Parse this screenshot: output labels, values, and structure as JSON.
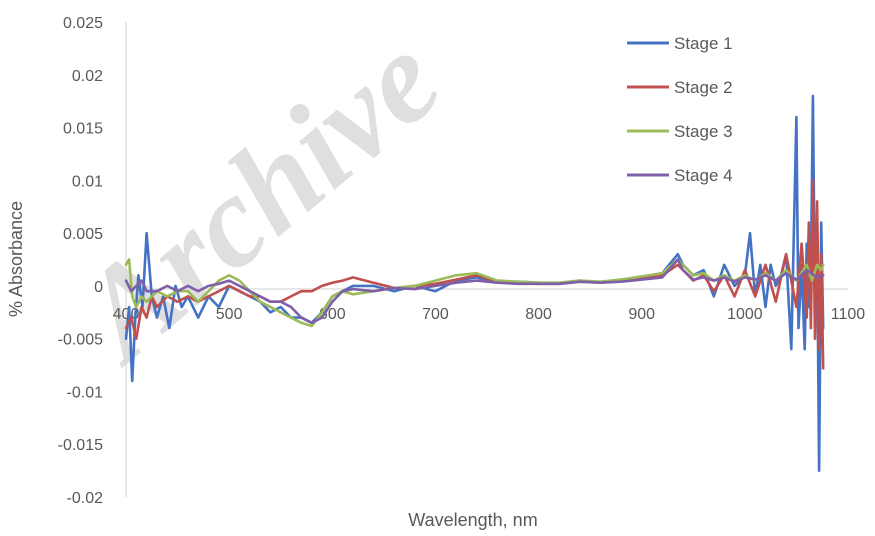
{
  "watermark": "Archive",
  "chart_data": {
    "type": "line",
    "title": "",
    "xlabel": "Wavelength, nm",
    "ylabel": "% Absorbance",
    "xlim": [
      400,
      1100
    ],
    "ylim": [
      -0.02,
      0.025
    ],
    "x_ticks": [
      400,
      500,
      600,
      700,
      800,
      900,
      1000,
      1100
    ],
    "x_tick_labels": [
      "400",
      "500",
      "600",
      "700",
      "800",
      "900",
      "1000",
      "1100"
    ],
    "y_ticks": [
      -0.02,
      -0.015,
      -0.01,
      -0.005,
      0,
      0.005,
      0.01,
      0.015,
      0.02,
      0.025
    ],
    "y_tick_labels": [
      "-0.02",
      "-0.015",
      "-0.01",
      "-0.005",
      "0",
      "0.005",
      "0.01",
      "0.015",
      "0.02",
      "0.025"
    ],
    "grid": false,
    "legend_position": "top-right",
    "series": [
      {
        "name": "Stage 1",
        "color": "#4472C4",
        "x": [
          400,
          403,
          406,
          409,
          412,
          416,
          420,
          425,
          430,
          436,
          442,
          448,
          454,
          460,
          470,
          480,
          490,
          500,
          510,
          520,
          530,
          540,
          550,
          560,
          570,
          580,
          590,
          600,
          610,
          620,
          640,
          660,
          680,
          700,
          720,
          740,
          760,
          780,
          800,
          820,
          840,
          860,
          880,
          900,
          920,
          935,
          940,
          950,
          960,
          970,
          980,
          990,
          1000,
          1005,
          1010,
          1015,
          1020,
          1025,
          1030,
          1035,
          1040,
          1045,
          1050,
          1052,
          1055,
          1058,
          1060,
          1062,
          1064,
          1066,
          1068,
          1070,
          1072,
          1074,
          1076
        ],
        "y": [
          -0.005,
          -0.002,
          -0.009,
          -0.003,
          0.001,
          -0.002,
          0.005,
          -0.001,
          -0.003,
          -0.001,
          -0.004,
          0.0,
          -0.002,
          -0.001,
          -0.003,
          -0.001,
          -0.002,
          0.0,
          -0.0005,
          -0.001,
          -0.0015,
          -0.0025,
          -0.002,
          -0.003,
          -0.003,
          -0.0035,
          -0.0025,
          -0.001,
          -0.0005,
          0.0,
          0.0,
          -0.0005,
          0.0,
          -0.0005,
          0.0005,
          0.0008,
          0.0003,
          0.0004,
          0.0003,
          0.0002,
          0.0005,
          0.0003,
          0.0006,
          0.0008,
          0.0012,
          0.003,
          0.002,
          0.001,
          0.0015,
          -0.001,
          0.002,
          0.0,
          0.001,
          0.005,
          -0.001,
          0.002,
          -0.002,
          0.002,
          0.0,
          0.001,
          0.003,
          -0.006,
          0.016,
          -0.004,
          0.002,
          -0.006,
          0.004,
          -0.002,
          0.001,
          0.018,
          -0.002,
          0.005,
          -0.0175,
          0.006,
          -0.004
        ]
      },
      {
        "name": "Stage 2",
        "color": "#C0504D",
        "x": [
          400,
          405,
          410,
          415,
          420,
          425,
          430,
          440,
          450,
          460,
          470,
          480,
          490,
          500,
          510,
          520,
          530,
          540,
          550,
          560,
          570,
          580,
          590,
          600,
          610,
          620,
          640,
          660,
          680,
          700,
          720,
          740,
          760,
          780,
          800,
          820,
          840,
          860,
          880,
          900,
          920,
          935,
          940,
          950,
          960,
          970,
          980,
          990,
          1000,
          1010,
          1020,
          1030,
          1040,
          1050,
          1055,
          1060,
          1062,
          1064,
          1066,
          1068,
          1070,
          1072,
          1074,
          1076
        ],
        "y": [
          -0.004,
          -0.003,
          -0.005,
          -0.002,
          -0.003,
          -0.001,
          -0.002,
          -0.001,
          -0.0015,
          -0.001,
          -0.0015,
          -0.001,
          -0.0005,
          0.0,
          -0.0005,
          -0.001,
          -0.001,
          -0.0015,
          -0.0015,
          -0.001,
          -0.0005,
          -0.0005,
          0.0,
          0.0003,
          0.0005,
          0.0008,
          0.0003,
          -0.0002,
          0.0,
          0.0002,
          0.0006,
          0.001,
          0.0004,
          0.0003,
          0.0002,
          0.0002,
          0.0004,
          0.0003,
          0.0005,
          0.0008,
          0.001,
          0.002,
          0.0015,
          0.0005,
          0.001,
          -0.0005,
          0.001,
          -0.001,
          0.0015,
          -0.001,
          0.002,
          -0.0015,
          0.003,
          -0.002,
          0.004,
          -0.003,
          0.006,
          -0.004,
          0.01,
          -0.005,
          0.008,
          -0.006,
          0.003,
          -0.0078
        ]
      },
      {
        "name": "Stage 3",
        "color": "#9BBB59",
        "x": [
          400,
          403,
          406,
          410,
          415,
          420,
          430,
          440,
          450,
          460,
          470,
          480,
          490,
          500,
          510,
          520,
          530,
          540,
          550,
          560,
          570,
          580,
          590,
          600,
          610,
          620,
          640,
          660,
          680,
          700,
          720,
          740,
          760,
          780,
          800,
          820,
          840,
          860,
          880,
          900,
          920,
          935,
          940,
          950,
          960,
          970,
          980,
          990,
          1000,
          1010,
          1020,
          1030,
          1040,
          1050,
          1060,
          1065,
          1070,
          1074,
          1076
        ],
        "y": [
          0.002,
          0.0025,
          -0.001,
          -0.002,
          -0.001,
          -0.0015,
          -0.0005,
          -0.001,
          -0.0005,
          -0.0005,
          -0.0015,
          -0.0005,
          0.0005,
          0.001,
          0.0005,
          -0.0005,
          -0.0015,
          -0.002,
          -0.0025,
          -0.003,
          -0.0035,
          -0.0038,
          -0.0025,
          -0.001,
          -0.0005,
          -0.0008,
          -0.0005,
          -0.0002,
          0.0,
          0.0005,
          0.001,
          0.0012,
          0.0005,
          0.0004,
          0.0003,
          0.0003,
          0.0005,
          0.0004,
          0.0006,
          0.0009,
          0.0012,
          0.0025,
          0.002,
          0.001,
          0.0012,
          0.0005,
          0.001,
          0.0005,
          0.001,
          0.0005,
          0.0012,
          0.0005,
          0.0015,
          0.0005,
          0.002,
          0.0005,
          0.002,
          0.0015,
          0.002
        ]
      },
      {
        "name": "Stage 4",
        "color": "#7F5FA8",
        "x": [
          400,
          405,
          410,
          415,
          420,
          430,
          440,
          450,
          460,
          470,
          480,
          490,
          500,
          510,
          520,
          530,
          540,
          550,
          560,
          570,
          580,
          590,
          600,
          610,
          620,
          640,
          660,
          680,
          700,
          720,
          740,
          760,
          780,
          800,
          820,
          840,
          860,
          880,
          900,
          920,
          935,
          940,
          950,
          960,
          970,
          980,
          990,
          1000,
          1010,
          1020,
          1030,
          1040,
          1050,
          1060,
          1070,
          1076
        ],
        "y": [
          0.0005,
          -0.0005,
          0.0,
          0.0005,
          -0.0005,
          -0.0005,
          0.0,
          -0.0005,
          0.0,
          -0.0005,
          0.0,
          0.0002,
          0.0005,
          0.0,
          -0.0005,
          -0.001,
          -0.0015,
          -0.0015,
          -0.002,
          -0.003,
          -0.0035,
          -0.003,
          -0.0015,
          -0.0005,
          -0.0003,
          -0.0005,
          -0.0002,
          -0.0003,
          0.0,
          0.0003,
          0.0005,
          0.0003,
          0.0002,
          0.0002,
          0.0002,
          0.0004,
          0.0003,
          0.0004,
          0.0006,
          0.0008,
          0.0025,
          0.0015,
          0.0006,
          0.0008,
          0.0005,
          0.0008,
          0.0004,
          0.0008,
          0.0006,
          0.001,
          0.0005,
          0.0012,
          0.0006,
          0.0015,
          0.0008,
          0.001
        ]
      }
    ]
  }
}
